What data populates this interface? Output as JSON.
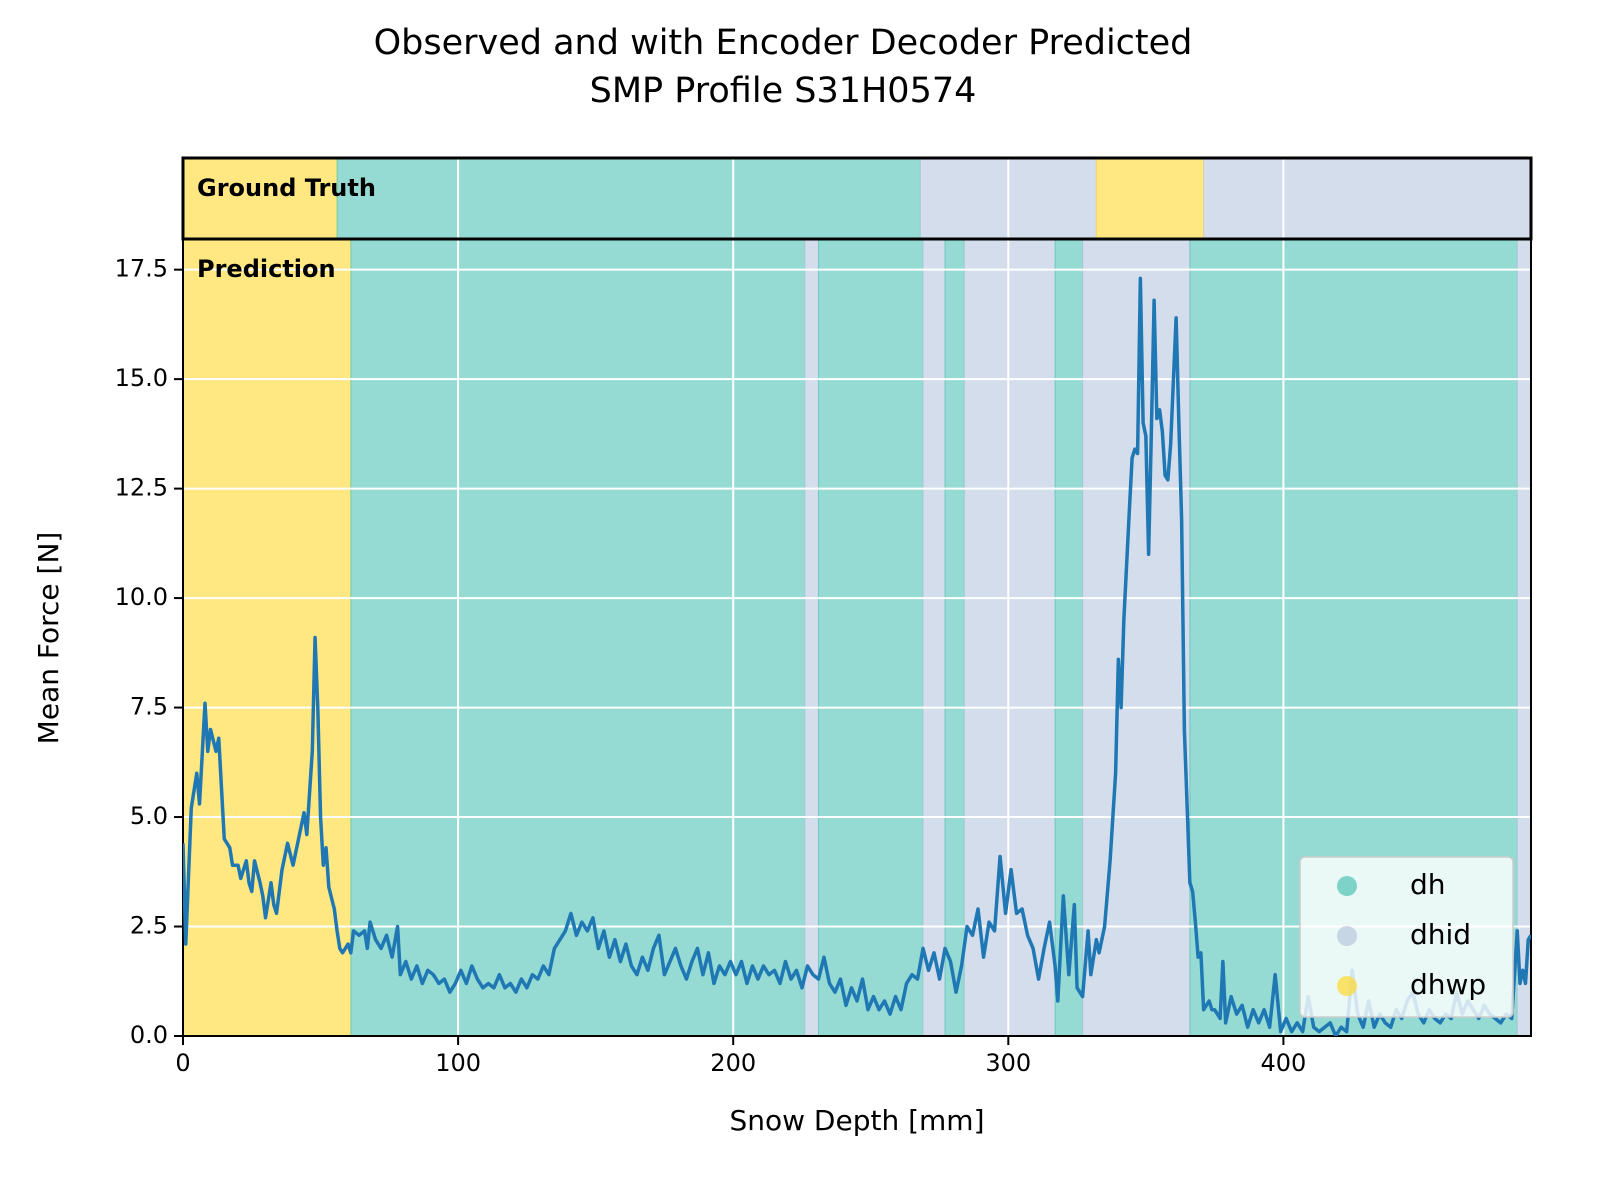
{
  "chart_data": {
    "type": "line",
    "title": [
      "Observed and with Encoder Decoder Predicted",
      "SMP Profile S31H0574"
    ],
    "xlabel": "Snow Depth [mm]",
    "ylabel": "Mean Force [N]",
    "xlim": [
      0,
      490
    ],
    "ylim": [
      0,
      18.2
    ],
    "xticks": [
      0,
      100,
      200,
      300,
      400
    ],
    "yticks": [
      {
        "value": 0,
        "label": "0.0"
      },
      2.5,
      {
        "value": 5,
        "label": "5.0"
      },
      7.5,
      {
        "value": 10,
        "label": "10.0"
      },
      12.5,
      {
        "value": 15,
        "label": "15.0"
      },
      17.5
    ],
    "grid": true,
    "legend": "lower right",
    "classes": [
      {
        "name": "dh",
        "color": "#4fc3b5"
      },
      {
        "name": "dhid",
        "color": "#b8c6de"
      },
      {
        "name": "dhwp",
        "color": "#ffd92f"
      }
    ],
    "panels": [
      {
        "label": "Ground Truth",
        "spans": [
          {
            "start": 0,
            "end": 56,
            "class": "dhwp"
          },
          {
            "start": 56,
            "end": 268,
            "class": "dh"
          },
          {
            "start": 268,
            "end": 332,
            "class": "dhid"
          },
          {
            "start": 332,
            "end": 371,
            "class": "dhwp"
          },
          {
            "start": 371,
            "end": 490,
            "class": "dhid"
          }
        ]
      },
      {
        "label": "Prediction",
        "spans": [
          {
            "start": 0,
            "end": 61,
            "class": "dhwp"
          },
          {
            "start": 61,
            "end": 226,
            "class": "dh"
          },
          {
            "start": 226,
            "end": 231,
            "class": "dhid"
          },
          {
            "start": 231,
            "end": 269,
            "class": "dh"
          },
          {
            "start": 269,
            "end": 277,
            "class": "dhid"
          },
          {
            "start": 277,
            "end": 284,
            "class": "dh"
          },
          {
            "start": 284,
            "end": 317,
            "class": "dhid"
          },
          {
            "start": 317,
            "end": 327,
            "class": "dh"
          },
          {
            "start": 327,
            "end": 366,
            "class": "dhid"
          },
          {
            "start": 366,
            "end": 485,
            "class": "dh"
          },
          {
            "start": 485,
            "end": 490,
            "class": "dhid"
          }
        ]
      }
    ],
    "series": [
      {
        "color": "#1f77b4",
        "x": [
          0,
          1,
          3,
          5,
          6,
          8,
          9,
          10,
          12,
          13,
          15,
          17,
          18,
          20,
          21,
          23,
          24,
          25,
          26,
          28,
          29,
          30,
          32,
          33,
          34,
          36,
          38,
          40,
          42,
          44,
          45,
          47,
          48,
          49,
          50,
          51,
          52,
          53,
          55,
          56,
          57,
          58,
          60,
          61,
          62,
          64,
          66,
          67,
          68,
          70,
          72,
          74,
          76,
          78,
          79,
          81,
          83,
          85,
          87,
          89,
          91,
          93,
          95,
          97,
          99,
          101,
          103,
          105,
          107,
          109,
          111,
          113,
          115,
          117,
          119,
          121,
          123,
          125,
          127,
          129,
          131,
          133,
          135,
          137,
          139,
          141,
          143,
          145,
          147,
          149,
          151,
          153,
          155,
          157,
          159,
          161,
          163,
          165,
          167,
          169,
          171,
          173,
          175,
          177,
          179,
          181,
          183,
          185,
          187,
          189,
          191,
          193,
          195,
          197,
          199,
          201,
          203,
          205,
          207,
          209,
          211,
          213,
          215,
          217,
          219,
          221,
          223,
          225,
          227,
          229,
          231,
          233,
          235,
          237,
          239,
          241,
          243,
          245,
          247,
          249,
          251,
          253,
          255,
          257,
          259,
          261,
          263,
          265,
          267,
          269,
          271,
          273,
          275,
          277,
          279,
          281,
          283,
          285,
          287,
          289,
          291,
          293,
          295,
          297,
          299,
          301,
          303,
          305,
          307,
          309,
          311,
          313,
          315,
          317,
          318,
          320,
          322,
          324,
          325,
          327,
          329,
          330,
          332,
          333,
          335,
          337,
          339,
          340,
          341,
          342,
          344,
          345,
          346,
          347,
          348,
          349,
          350,
          351,
          352,
          353,
          354,
          355,
          356,
          357,
          358,
          359,
          361,
          362,
          363,
          364,
          366,
          367,
          368,
          369,
          370,
          371,
          373,
          374,
          375,
          377,
          378,
          379,
          381,
          383,
          385,
          387,
          389,
          391,
          393,
          395,
          397,
          399,
          401,
          403,
          405,
          407,
          409,
          411,
          413,
          415,
          417,
          419,
          421,
          423,
          425,
          427,
          429,
          431,
          433,
          435,
          437,
          439,
          441,
          443,
          445,
          447,
          449,
          451,
          453,
          455,
          457,
          459,
          461,
          463,
          465,
          467,
          469,
          471,
          473,
          475,
          477,
          479,
          481,
          483,
          485,
          486,
          487,
          488,
          489,
          490
        ],
        "values": [
          4.4,
          2.1,
          5.2,
          6.0,
          5.3,
          7.6,
          6.5,
          7.0,
          6.5,
          6.8,
          4.5,
          4.3,
          3.9,
          3.9,
          3.6,
          4.0,
          3.5,
          3.3,
          4.0,
          3.5,
          3.2,
          2.7,
          3.5,
          3.0,
          2.8,
          3.8,
          4.4,
          3.9,
          4.5,
          5.1,
          4.6,
          6.5,
          9.1,
          7.5,
          5.0,
          3.9,
          4.3,
          3.4,
          2.9,
          2.4,
          2.0,
          1.9,
          2.1,
          1.9,
          2.4,
          2.3,
          2.4,
          2.0,
          2.6,
          2.2,
          2.0,
          2.3,
          1.8,
          2.5,
          1.4,
          1.7,
          1.3,
          1.6,
          1.2,
          1.5,
          1.4,
          1.2,
          1.3,
          1.0,
          1.2,
          1.5,
          1.2,
          1.6,
          1.3,
          1.1,
          1.2,
          1.1,
          1.4,
          1.1,
          1.2,
          1.0,
          1.3,
          1.1,
          1.4,
          1.3,
          1.6,
          1.4,
          2.0,
          2.2,
          2.4,
          2.8,
          2.3,
          2.6,
          2.4,
          2.7,
          2.0,
          2.4,
          1.8,
          2.2,
          1.7,
          2.1,
          1.6,
          1.4,
          1.8,
          1.5,
          2.0,
          2.3,
          1.4,
          1.7,
          2.0,
          1.6,
          1.3,
          1.7,
          2.0,
          1.4,
          1.9,
          1.2,
          1.6,
          1.4,
          1.7,
          1.4,
          1.7,
          1.2,
          1.6,
          1.3,
          1.6,
          1.4,
          1.5,
          1.2,
          1.7,
          1.3,
          1.5,
          1.1,
          1.6,
          1.4,
          1.3,
          1.8,
          1.2,
          1.0,
          1.3,
          0.7,
          1.1,
          0.8,
          1.3,
          0.6,
          0.9,
          0.6,
          0.8,
          0.5,
          0.9,
          0.6,
          1.2,
          1.4,
          1.3,
          2.0,
          1.5,
          1.9,
          1.3,
          2.0,
          1.7,
          1.0,
          1.6,
          2.5,
          2.3,
          2.9,
          1.8,
          2.6,
          2.4,
          4.1,
          2.8,
          3.8,
          2.8,
          2.9,
          2.3,
          2.0,
          1.3,
          2.0,
          2.6,
          1.6,
          0.8,
          3.2,
          1.4,
          3.0,
          1.1,
          0.9,
          2.4,
          1.4,
          2.2,
          1.9,
          2.5,
          4.0,
          6.0,
          8.6,
          7.5,
          9.5,
          12.0,
          13.2,
          13.4,
          13.3,
          17.3,
          14.0,
          13.7,
          11.0,
          13.8,
          16.8,
          14.1,
          14.3,
          13.8,
          12.8,
          12.7,
          13.5,
          16.4,
          14.0,
          11.8,
          7.0,
          3.5,
          3.3,
          2.6,
          1.8,
          1.9,
          0.6,
          0.8,
          0.6,
          0.6,
          0.4,
          1.7,
          0.3,
          0.9,
          0.5,
          0.7,
          0.2,
          0.6,
          0.3,
          0.6,
          0.2,
          1.4,
          0.1,
          0.4,
          0.1,
          0.3,
          0.1,
          0.9,
          0.2,
          0.1,
          0.2,
          0.3,
          0.0,
          0.2,
          0.1,
          1.5,
          0.5,
          0.2,
          0.8,
          0.2,
          0.5,
          0.3,
          0.2,
          0.6,
          0.4,
          0.8,
          1.0,
          0.5,
          0.3,
          0.6,
          0.4,
          0.3,
          0.5,
          0.4,
          1.0,
          0.5,
          0.8,
          0.6,
          0.4,
          0.7,
          0.5,
          0.4,
          0.3,
          0.5,
          0.4,
          2.4,
          1.2,
          1.5,
          1.2,
          2.2,
          2.3
        ]
      }
    ]
  }
}
